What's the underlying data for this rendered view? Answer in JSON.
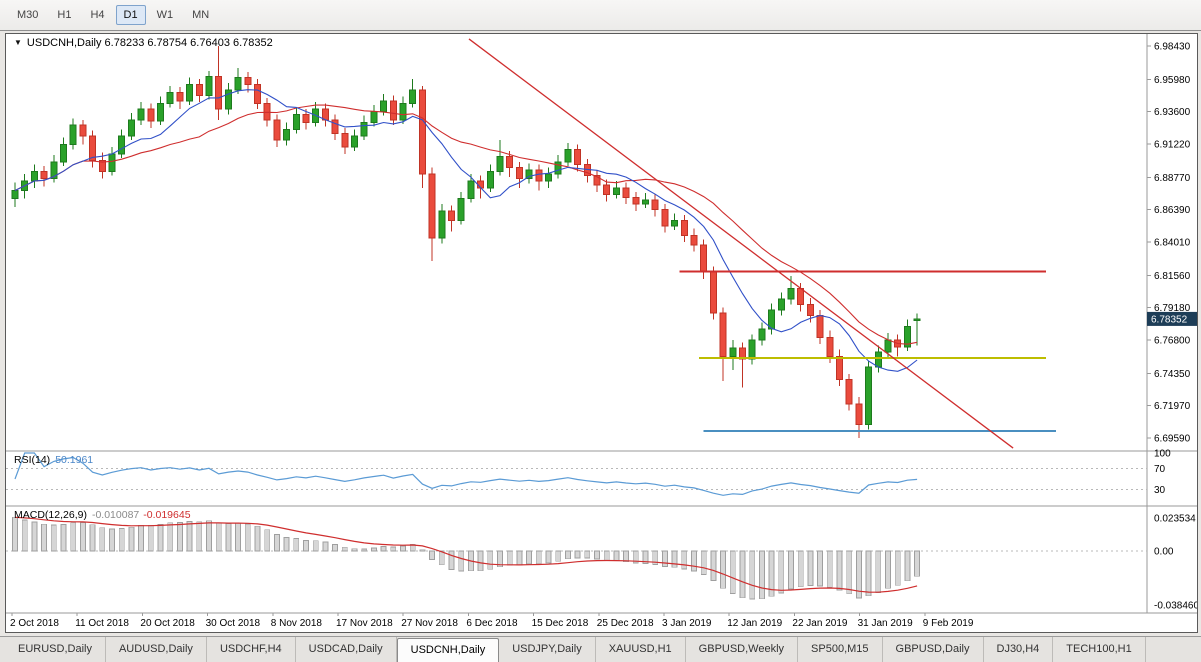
{
  "toolbar": {
    "timeframes": [
      "M30",
      "H1",
      "H4",
      "D1",
      "W1",
      "MN"
    ],
    "active_timeframe": "D1"
  },
  "chart_data": {
    "type": "candlestick",
    "title": "USDCNH,Daily",
    "ohlc_display": "6.78233 6.78754 6.76403 6.78352",
    "current_price": "6.78352",
    "price_tick_labels": [
      "6.98430",
      "6.95980",
      "6.93600",
      "6.91220",
      "6.88770",
      "6.86390",
      "6.84010",
      "6.81560",
      "6.79180",
      "6.76800",
      "6.74350",
      "6.71970",
      "6.69590"
    ],
    "x_tick_labels": [
      "2 Oct 2018",
      "11 Oct 2018",
      "20 Oct 2018",
      "30 Oct 2018",
      "8 Nov 2018",
      "17 Nov 2018",
      "27 Nov 2018",
      "6 Dec 2018",
      "15 Dec 2018",
      "25 Dec 2018",
      "3 Jan 2019",
      "12 Jan 2019",
      "22 Jan 2019",
      "31 Jan 2019",
      "9 Feb 2019"
    ],
    "candles": [
      [
        6.872,
        6.884,
        6.866,
        6.878
      ],
      [
        6.878,
        6.89,
        6.872,
        6.885
      ],
      [
        6.885,
        6.897,
        6.88,
        6.892
      ],
      [
        6.892,
        6.896,
        6.881,
        6.887
      ],
      [
        6.887,
        6.904,
        6.884,
        6.899
      ],
      [
        6.899,
        6.917,
        6.896,
        6.912
      ],
      [
        6.912,
        6.931,
        6.908,
        6.926
      ],
      [
        6.926,
        6.93,
        6.912,
        6.918
      ],
      [
        6.918,
        6.922,
        6.895,
        6.9
      ],
      [
        6.9,
        6.906,
        6.887,
        6.892
      ],
      [
        6.892,
        6.91,
        6.889,
        6.905
      ],
      [
        6.905,
        6.923,
        6.902,
        6.918
      ],
      [
        6.918,
        6.935,
        6.915,
        6.93
      ],
      [
        6.93,
        6.943,
        6.926,
        6.938
      ],
      [
        6.938,
        6.942,
        6.924,
        6.929
      ],
      [
        6.929,
        6.947,
        6.926,
        6.942
      ],
      [
        6.942,
        6.955,
        6.939,
        6.95
      ],
      [
        6.95,
        6.954,
        6.938,
        6.944
      ],
      [
        6.944,
        6.961,
        6.941,
        6.956
      ],
      [
        6.956,
        6.96,
        6.943,
        6.948
      ],
      [
        6.948,
        6.966,
        6.945,
        6.962
      ],
      [
        6.962,
        6.9843,
        6.93,
        6.938
      ],
      [
        6.938,
        6.957,
        6.934,
        6.952
      ],
      [
        6.952,
        6.968,
        6.949,
        6.961
      ],
      [
        6.961,
        6.965,
        6.95,
        6.956
      ],
      [
        6.956,
        6.96,
        6.938,
        6.942
      ],
      [
        6.942,
        6.946,
        6.925,
        6.93
      ],
      [
        6.93,
        6.934,
        6.91,
        6.915
      ],
      [
        6.915,
        6.928,
        6.911,
        6.923
      ],
      [
        6.923,
        6.939,
        6.92,
        6.934
      ],
      [
        6.934,
        6.938,
        6.923,
        6.928
      ],
      [
        6.928,
        6.943,
        6.925,
        6.938
      ],
      [
        6.938,
        6.942,
        6.925,
        6.93
      ],
      [
        6.93,
        6.934,
        6.915,
        6.92
      ],
      [
        6.92,
        6.924,
        6.905,
        6.91
      ],
      [
        6.91,
        6.923,
        6.907,
        6.918
      ],
      [
        6.918,
        6.933,
        6.915,
        6.928
      ],
      [
        6.928,
        6.941,
        6.925,
        6.936
      ],
      [
        6.936,
        6.949,
        6.933,
        6.944
      ],
      [
        6.944,
        6.948,
        6.926,
        6.93
      ],
      [
        6.93,
        6.947,
        6.927,
        6.942
      ],
      [
        6.942,
        6.96,
        6.939,
        6.952
      ],
      [
        6.952,
        6.955,
        6.88,
        6.89
      ],
      [
        6.89,
        6.895,
        6.826,
        6.843
      ],
      [
        6.843,
        6.868,
        6.839,
        6.863
      ],
      [
        6.863,
        6.867,
        6.848,
        6.856
      ],
      [
        6.856,
        6.877,
        6.853,
        6.872
      ],
      [
        6.872,
        6.89,
        6.869,
        6.885
      ],
      [
        6.885,
        6.889,
        6.872,
        6.88
      ],
      [
        6.88,
        6.897,
        6.877,
        6.892
      ],
      [
        6.892,
        6.915,
        6.889,
        6.903
      ],
      [
        6.903,
        6.907,
        6.888,
        6.895
      ],
      [
        6.895,
        6.899,
        6.88,
        6.887
      ],
      [
        6.887,
        6.898,
        6.883,
        6.893
      ],
      [
        6.893,
        6.897,
        6.878,
        6.885
      ],
      [
        6.885,
        6.895,
        6.88,
        6.89
      ],
      [
        6.89,
        6.904,
        6.887,
        6.899
      ],
      [
        6.899,
        6.913,
        6.896,
        6.908
      ],
      [
        6.908,
        6.912,
        6.892,
        6.897
      ],
      [
        6.897,
        6.901,
        6.884,
        6.889
      ],
      [
        6.889,
        6.893,
        6.877,
        6.882
      ],
      [
        6.882,
        6.886,
        6.87,
        6.875
      ],
      [
        6.875,
        6.885,
        6.872,
        6.88
      ],
      [
        6.88,
        6.884,
        6.868,
        6.873
      ],
      [
        6.873,
        6.877,
        6.863,
        6.868
      ],
      [
        6.868,
        6.876,
        6.865,
        6.871
      ],
      [
        6.871,
        6.875,
        6.859,
        6.864
      ],
      [
        6.864,
        6.868,
        6.847,
        6.852
      ],
      [
        6.852,
        6.861,
        6.849,
        6.856
      ],
      [
        6.856,
        6.86,
        6.84,
        6.845
      ],
      [
        6.845,
        6.85,
        6.833,
        6.838
      ],
      [
        6.838,
        6.842,
        6.813,
        6.818
      ],
      [
        6.818,
        6.822,
        6.783,
        6.788
      ],
      [
        6.788,
        6.792,
        6.738,
        6.756
      ],
      [
        6.756,
        6.768,
        6.746,
        6.762
      ],
      [
        6.762,
        6.766,
        6.733,
        6.754
      ],
      [
        6.754,
        6.772,
        6.75,
        6.768
      ],
      [
        6.768,
        6.781,
        6.764,
        6.776
      ],
      [
        6.776,
        6.795,
        6.772,
        6.79
      ],
      [
        6.79,
        6.803,
        6.786,
        6.798
      ],
      [
        6.798,
        6.815,
        6.794,
        6.806
      ],
      [
        6.806,
        6.81,
        6.789,
        6.794
      ],
      [
        6.794,
        6.799,
        6.781,
        6.786
      ],
      [
        6.786,
        6.79,
        6.765,
        6.77
      ],
      [
        6.77,
        6.775,
        6.751,
        6.756
      ],
      [
        6.756,
        6.761,
        6.734,
        6.739
      ],
      [
        6.739,
        6.743,
        6.716,
        6.721
      ],
      [
        6.721,
        6.726,
        6.6959,
        6.706
      ],
      [
        6.706,
        6.753,
        6.702,
        6.748
      ],
      [
        6.748,
        6.764,
        6.744,
        6.759
      ],
      [
        6.759,
        6.773,
        6.755,
        6.768
      ],
      [
        6.768,
        6.772,
        6.756,
        6.763
      ],
      [
        6.763,
        6.783,
        6.76,
        6.778
      ],
      [
        6.78233,
        6.78754,
        6.76403,
        6.78352
      ]
    ],
    "ma_periods": {
      "fast": 8,
      "slow": 20
    },
    "objects": {
      "trendline": {
        "from_index": 46.8,
        "from_price": 6.9895,
        "to_index": 102.9,
        "to_price": 6.6885,
        "color": "#cf2e2e"
      },
      "hlines": [
        {
          "price": 6.8185,
          "from_index": 68.5,
          "to_index": 106.3,
          "color": "#cf2e2e"
        },
        {
          "price": 6.7548,
          "from_index": 70.5,
          "to_index": 106.3,
          "color": "#bdbd00"
        },
        {
          "price": 6.701,
          "from_index": 71.0,
          "to_index": 107.3,
          "color": "#4a8fc0"
        }
      ]
    },
    "indicators": {
      "rsi": {
        "label": "RSI(14)",
        "value": "50.1961",
        "period": 14,
        "levels": [
          70,
          30
        ],
        "scale_labels": [
          "100",
          "70",
          "30"
        ]
      },
      "macd": {
        "label": "MACD(12,26,9)",
        "main_value": "-0.010087",
        "signal_value": "-0.019645",
        "fast": 12,
        "slow": 26,
        "signal": 9,
        "scale_labels": [
          "0.023534",
          "0.00",
          "-0.038460"
        ]
      }
    },
    "colors": {
      "bull": "#2aa12a",
      "bull_border": "#1d7a1d",
      "bear": "#ea4b3d",
      "bear_border": "#c03325",
      "ma_fast": "#3050c8",
      "ma_slow": "#cf2e2e",
      "rsi": "#5b9bd5",
      "macd_hist_fill": "#d6d6d6",
      "macd_hist_border": "#9f9f9f",
      "macd_signal": "#cf2e2e",
      "price_badge_bg": "#1d3d57",
      "price_badge_text": "#ffffff",
      "level_dash": "#b8b8b8",
      "pane_separator": "#9a9a9a",
      "axis_text": "#000000"
    }
  },
  "tab_bar": {
    "tabs": [
      "EURUSD,Daily",
      "AUDUSD,Daily",
      "USDCHF,H4",
      "USDCAD,Daily",
      "USDCNH,Daily",
      "USDJPY,Daily",
      "XAUUSD,H1",
      "GBPUSD,Weekly",
      "SP500,M15",
      "GBPUSD,Daily",
      "DJ30,H4",
      "TECH100,H1"
    ],
    "active_tab": "USDCNH,Daily"
  }
}
